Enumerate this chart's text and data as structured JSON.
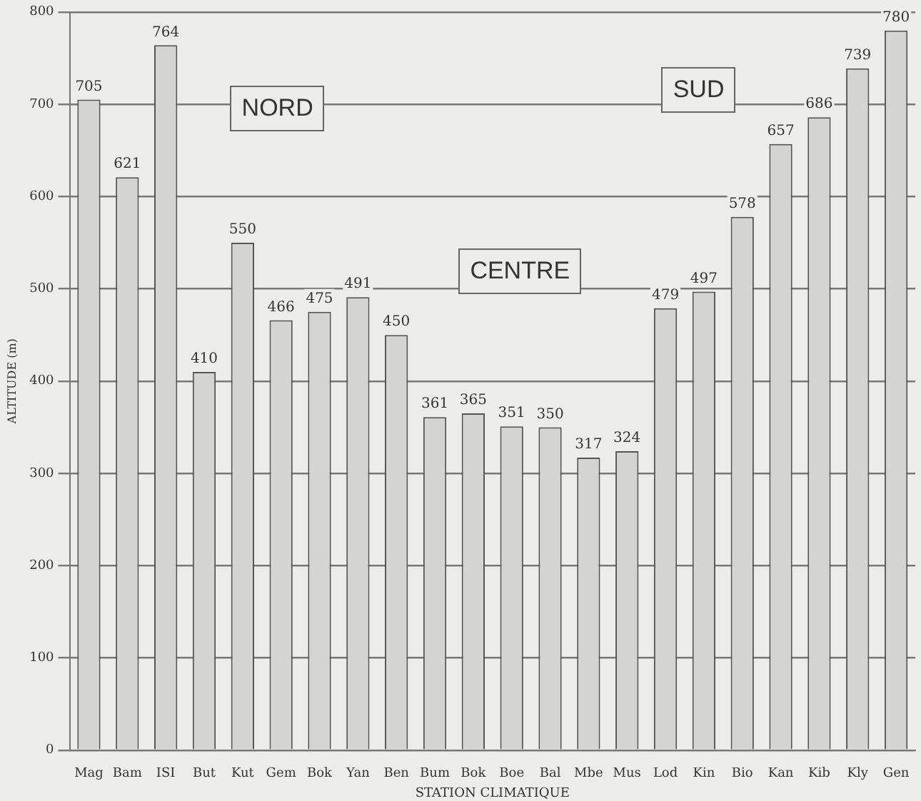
{
  "chart_data": {
    "type": "bar",
    "xlabel": "STATION CLIMATIQUE",
    "ylabel": "ALTITUDE (m)",
    "categories": [
      "Mag",
      "Bam",
      "ISI",
      "But",
      "Kut",
      "Gem",
      "Bok",
      "Yan",
      "Ben",
      "Bum",
      "Bok",
      "Boe",
      "Bal",
      "Mbe",
      "Mus",
      "Lod",
      "Kin",
      "Bio",
      "Kan",
      "Kib",
      "Kly",
      "Gen"
    ],
    "values": [
      705,
      621,
      764,
      410,
      550,
      466,
      475,
      491,
      450,
      361,
      365,
      351,
      350,
      317,
      324,
      479,
      497,
      578,
      657,
      686,
      739,
      780
    ],
    "color": "#d4d4d0",
    "ylim": [
      0,
      800
    ],
    "yticks": [
      0,
      100,
      200,
      300,
      400,
      500,
      600,
      700,
      800
    ],
    "grid": "y",
    "data_labels": true,
    "legend": false,
    "annotations": [
      "NORD",
      "CENTRE",
      "SUD"
    ]
  }
}
